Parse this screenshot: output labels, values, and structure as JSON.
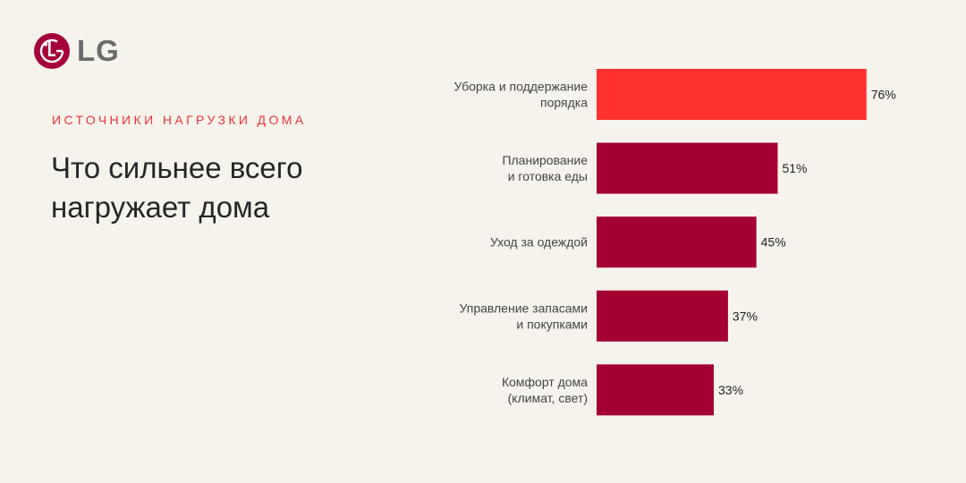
{
  "brand": {
    "logo_text": "LG",
    "logo_mark_letters": "L G",
    "logo_color": "#a5003a"
  },
  "header": {
    "eyebrow": "ИСТОЧНИКИ НАГРУЗКИ ДОМА",
    "title_line1": "Что сильнее всего",
    "title_line2": "нагружает дома"
  },
  "colors": {
    "highlight": "#ff3030",
    "bar": "#a50034",
    "eyebrow": "#e8343a"
  },
  "chart_data": {
    "type": "bar",
    "orientation": "horizontal",
    "categories": [
      [
        "Уборка и поддержание",
        "порядка"
      ],
      [
        "Планирование",
        "и готовка еды"
      ],
      [
        "Уход за одеждой"
      ],
      [
        "Управление запасами",
        "и покупками"
      ],
      [
        "Комфорт дома",
        "(климат, свет)"
      ]
    ],
    "values": [
      76,
      51,
      45,
      37,
      33
    ],
    "value_labels": [
      "76%",
      "51%",
      "45%",
      "37%",
      "33%"
    ],
    "highlight_index": 0,
    "xlim": [
      0,
      100
    ],
    "grid": false,
    "title": "",
    "xlabel": "",
    "ylabel": ""
  }
}
